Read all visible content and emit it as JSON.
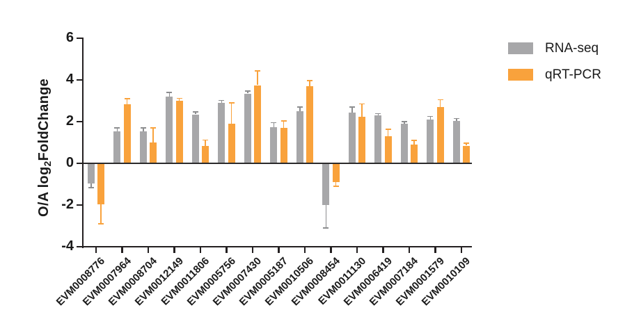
{
  "figure": {
    "background": "#ffffff",
    "axis_color": "#231f20",
    "text_color": "#1a1a1a",
    "zero_line_color": "#2b2a2b"
  },
  "labels": {
    "ylabel_prefix": "O/A log",
    "ylabel_sub": "2",
    "ylabel_suffix": "FoldChange"
  },
  "chart_data": {
    "type": "bar",
    "title": "",
    "xlabel": "",
    "ylabel": "O/A log2FoldChange",
    "ylim": [
      -4,
      6
    ],
    "yticks": [
      6,
      4,
      2,
      0,
      -2,
      -4
    ],
    "grid": false,
    "legend_position": "top-right",
    "error_bars": "one-sided outward, capped",
    "categories": [
      "EVM0008776",
      "EVM0007964",
      "EVM0008704",
      "EVM0012149",
      "EVM0011806",
      "EVM0005756",
      "EVM0007430",
      "EVM0005187",
      "EVM0010506",
      "EVM0008454",
      "EVM0011130",
      "EVM0006419",
      "EVM0007184",
      "EVM0001579",
      "EVM0010109"
    ],
    "series": [
      {
        "name": "RNA-seq",
        "color": "#A7A7A9",
        "error_color": "#8C8D8F",
        "values": [
          -0.95,
          1.55,
          1.55,
          3.2,
          2.35,
          2.9,
          3.35,
          1.75,
          2.5,
          -2.0,
          2.45,
          2.3,
          1.9,
          2.1,
          2.05
        ],
        "errors": [
          0.22,
          0.15,
          0.15,
          0.2,
          0.12,
          0.12,
          0.12,
          0.2,
          0.2,
          1.1,
          0.25,
          0.08,
          0.1,
          0.15,
          0.1
        ]
      },
      {
        "name": "qRT-PCR",
        "color": "#F9A23C",
        "error_color": "#F9A23C",
        "values": [
          -1.95,
          2.85,
          1.0,
          3.0,
          0.82,
          1.9,
          3.75,
          1.7,
          3.7,
          -0.9,
          2.25,
          1.3,
          0.9,
          2.7,
          0.85
        ],
        "errors": [
          0.95,
          0.25,
          0.7,
          0.12,
          0.3,
          1.0,
          0.68,
          0.33,
          0.27,
          0.2,
          0.6,
          0.33,
          0.2,
          0.35,
          0.12
        ]
      }
    ]
  }
}
